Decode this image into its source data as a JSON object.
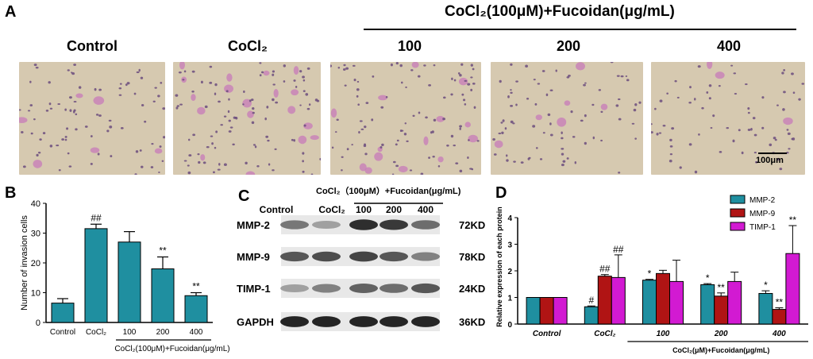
{
  "panelA": {
    "letter": "A",
    "treatment_header": "CoCl₂(100μM)+Fucoidan(μg/mL)",
    "columns": [
      "Control",
      "CoCl₂",
      "100",
      "200",
      "400"
    ],
    "scale_bar": "100μm"
  },
  "panelB": {
    "letter": "B"
  },
  "panelC": {
    "letter": "C",
    "treatment_header": "CoCl₂（100μM）+Fucoidan(μg/mL)",
    "lanes": [
      "Control",
      "CoCl₂",
      "100",
      "200",
      "400"
    ],
    "proteins": [
      "MMP-2",
      "MMP-9",
      "TIMP-1",
      "GAPDH"
    ],
    "sizes": [
      "72KD",
      "78KD",
      "24KD",
      "36KD"
    ]
  },
  "panelD": {
    "letter": "D"
  },
  "chart_data": [
    {
      "type": "bar",
      "ylabel": "Number of invasion cells",
      "categories": [
        "Control",
        "CoCl₂",
        "100",
        "200",
        "400"
      ],
      "values": [
        6.5,
        31.5,
        27,
        18,
        9
      ],
      "errors": [
        1.5,
        1.5,
        3.5,
        4,
        1
      ],
      "annotations": [
        "",
        "##",
        "",
        "**",
        "**"
      ],
      "ylim": [
        0,
        40
      ],
      "yticks": [
        0,
        10,
        20,
        30,
        40
      ],
      "xgroup_label": "CoCl₂(100μM)+Fucoidan(μg/mL)",
      "color": "#1f8fa0"
    },
    {
      "type": "bar",
      "ylabel": "Relative expression of each protein",
      "categories": [
        "Control",
        "CoCl₂",
        "100",
        "200",
        "400"
      ],
      "series": [
        {
          "name": "MMP-2",
          "color": "#1f8fa0",
          "values": [
            1.0,
            0.65,
            1.65,
            1.48,
            1.15
          ],
          "errors": [
            0,
            0.03,
            0.03,
            0.04,
            0.1
          ],
          "annotations": [
            "",
            "#",
            "*",
            "*",
            "*"
          ]
        },
        {
          "name": "MMP-9",
          "color": "#b01414",
          "values": [
            1.0,
            1.8,
            1.9,
            1.05,
            0.55
          ],
          "errors": [
            0,
            0.06,
            0.12,
            0.12,
            0.06
          ],
          "annotations": [
            "",
            "##",
            "",
            "**",
            "**"
          ]
        },
        {
          "name": "TIMP-1",
          "color": "#d21ad2",
          "values": [
            1.0,
            1.75,
            1.6,
            1.6,
            2.65
          ],
          "errors": [
            0,
            0.85,
            0.8,
            0.35,
            1.05
          ],
          "annotations": [
            "",
            "##",
            "",
            "",
            "**"
          ]
        }
      ],
      "ylim": [
        0,
        4
      ],
      "yticks": [
        0,
        1,
        2,
        3,
        4
      ],
      "legend": "top-right",
      "xgroup_label": "CoCl₂(μM)+Fucoidan(μg/mL)"
    }
  ]
}
